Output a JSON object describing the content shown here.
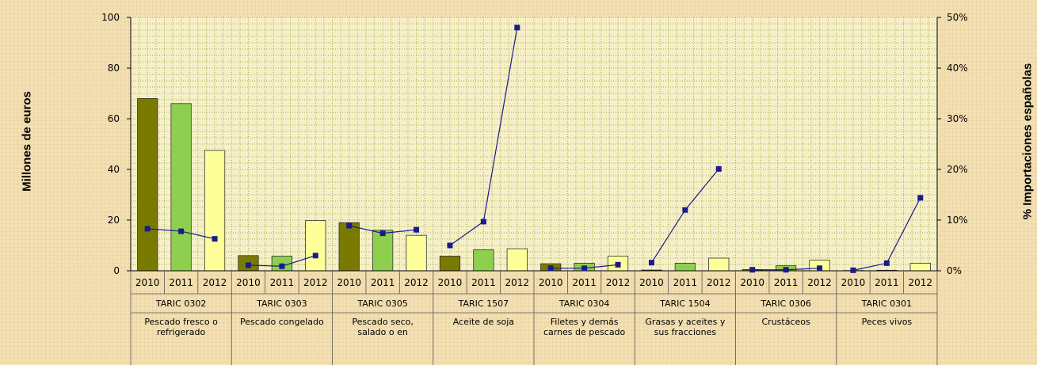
{
  "chart_data": {
    "type": "bar",
    "ylabel": "Millones de euros",
    "y2label": "% Importaciones españolas",
    "ylim": [
      0,
      100
    ],
    "y2lim": [
      0,
      50
    ],
    "yticks": [
      "0",
      "20",
      "40",
      "60",
      "80",
      "100"
    ],
    "y2ticks": [
      "0%",
      "10%",
      "20%",
      "30%",
      "40%",
      "50%"
    ],
    "grid": true,
    "groups": [
      {
        "code": "TARIC 0302",
        "desc": [
          "Pescado fresco o",
          "refrigerado"
        ]
      },
      {
        "code": "TARIC 0303",
        "desc": [
          "Pescado congelado"
        ]
      },
      {
        "code": "TARIC 0305",
        "desc": [
          "Pescado seco,",
          "salado o en"
        ]
      },
      {
        "code": "TARIC 1507",
        "desc": [
          "Aceite de soja"
        ]
      },
      {
        "code": "TARIC 0304",
        "desc": [
          "Filetes y demás",
          "carnes de pescado"
        ]
      },
      {
        "code": "TARIC 1504",
        "desc": [
          "Grasas y aceites y",
          "sus fracciones"
        ]
      },
      {
        "code": "TARIC 0306",
        "desc": [
          "Crustáceos"
        ]
      },
      {
        "code": "TARIC 0301",
        "desc": [
          "Peces vivos"
        ]
      }
    ],
    "years": [
      "2010",
      "2011",
      "2012"
    ],
    "series": [
      {
        "year": "2010",
        "color": "#7a7a00",
        "values": [
          68,
          6,
          19,
          5.8,
          2.8,
          0.3,
          0.5,
          0.1
        ]
      },
      {
        "year": "2011",
        "color": "#8fcf50",
        "values": [
          66,
          5.8,
          16,
          8.3,
          3,
          3,
          2,
          0.2
        ]
      },
      {
        "year": "2012",
        "color": "#ffff99",
        "values": [
          47.5,
          19.8,
          14,
          8.7,
          5.8,
          5,
          4.2,
          3
        ]
      }
    ],
    "line_pct": [
      [
        8.3,
        7.8,
        6.3
      ],
      [
        1.1,
        0.9,
        3.0
      ],
      [
        8.9,
        7.4,
        8.1
      ],
      [
        5.0,
        9.7,
        48.0
      ],
      [
        0.5,
        0.5,
        1.2
      ],
      [
        1.6,
        12.0,
        20.1
      ],
      [
        0.2,
        0.2,
        0.5
      ],
      [
        0.1,
        1.5,
        14.4
      ]
    ],
    "line_color": "#1a1a8c"
  }
}
